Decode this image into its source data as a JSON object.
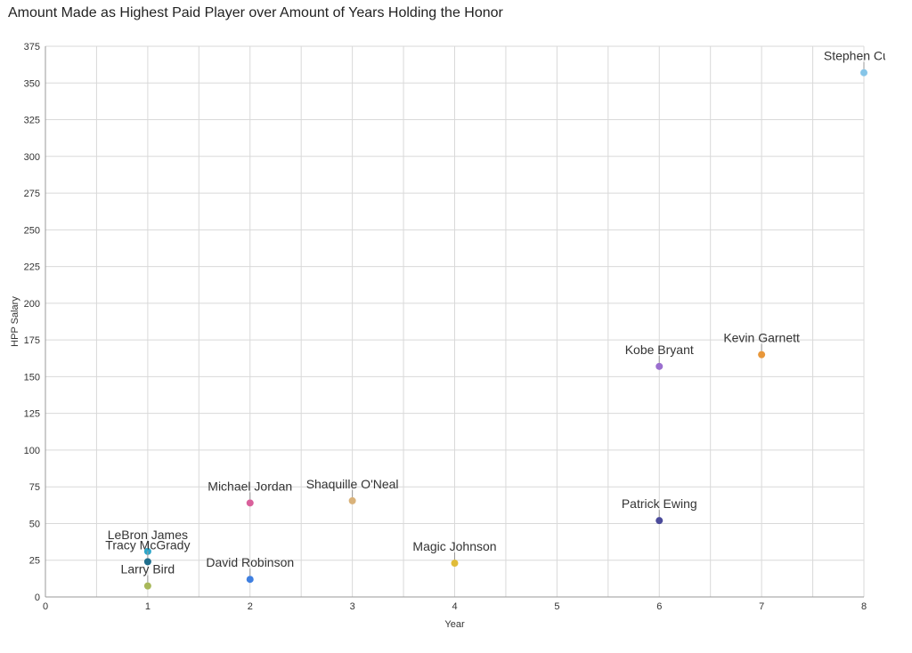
{
  "chart_data": {
    "type": "scatter",
    "title": "Amount Made as Highest Paid Player over Amount of Years Holding the Honor",
    "xlabel": "Year",
    "ylabel": "HPP Salary",
    "xlim": [
      0,
      8
    ],
    "ylim": [
      0,
      375
    ],
    "xticks": [
      "0",
      "1",
      "2",
      "3",
      "4",
      "5",
      "6",
      "7",
      "8"
    ],
    "yticks": [
      "0",
      "25",
      "50",
      "75",
      "100",
      "125",
      "150",
      "175",
      "200",
      "225",
      "250",
      "275",
      "300",
      "325",
      "350",
      "375"
    ],
    "grid": true,
    "legend": "none",
    "points": [
      {
        "label": "LeBron James",
        "x": 1,
        "y": 31,
        "color": "#2ca6c9"
      },
      {
        "label": "Tracy McGrady",
        "x": 1,
        "y": 24,
        "color": "#1f6e8c"
      },
      {
        "label": "Larry Bird",
        "x": 1,
        "y": 7.5,
        "color": "#a8b85a"
      },
      {
        "label": "Michael Jordan",
        "x": 2,
        "y": 64,
        "color": "#d9609b"
      },
      {
        "label": "David Robinson",
        "x": 2,
        "y": 12,
        "color": "#3f7fe0"
      },
      {
        "label": "Shaquille O'Neal",
        "x": 3,
        "y": 65.5,
        "color": "#d9b27a"
      },
      {
        "label": "Magic Johnson",
        "x": 4,
        "y": 23,
        "color": "#e0bc3a"
      },
      {
        "label": "Kobe Bryant",
        "x": 6,
        "y": 157,
        "color": "#9b6fcf"
      },
      {
        "label": "Patrick Ewing",
        "x": 6,
        "y": 52,
        "color": "#4a4a9a"
      },
      {
        "label": "Kevin Garnett",
        "x": 7,
        "y": 165,
        "color": "#e8973a"
      },
      {
        "label": "Stephen Curry",
        "x": 8,
        "y": 357,
        "color": "#86c5e8"
      }
    ]
  }
}
